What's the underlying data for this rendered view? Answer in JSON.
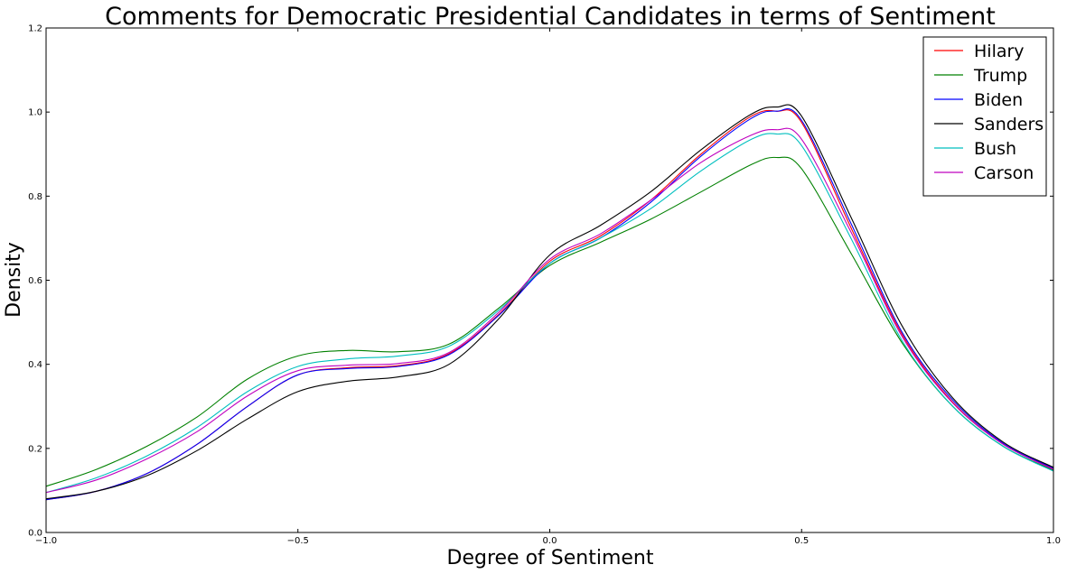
{
  "chart_data": {
    "type": "line",
    "title": "Comments for Democratic Presidential Candidates in terms of Sentiment",
    "xlabel": "Degree of Sentiment",
    "ylabel": "Density",
    "xlim": [
      -1.0,
      1.0
    ],
    "ylim": [
      0.0,
      1.2
    ],
    "xticks": [
      -1.0,
      -0.5,
      0.0,
      0.5,
      1.0
    ],
    "xtick_labels": [
      "−1.0",
      "−0.5",
      "0.0",
      "0.5",
      "1.0"
    ],
    "yticks": [
      0.0,
      0.2,
      0.4,
      0.6,
      0.8,
      1.0,
      1.2
    ],
    "ytick_labels": [
      "0.0",
      "0.2",
      "0.4",
      "0.6",
      "0.8",
      "1.0",
      "1.2"
    ],
    "grid": false,
    "legend_position": "top-right",
    "x": [
      -1.0,
      -0.9,
      -0.8,
      -0.7,
      -0.6,
      -0.5,
      -0.4,
      -0.3,
      -0.2,
      -0.1,
      0.0,
      0.1,
      0.2,
      0.3,
      0.4,
      0.45,
      0.5,
      0.6,
      0.7,
      0.8,
      0.9,
      1.0
    ],
    "series": [
      {
        "name": "Hilary",
        "color": "#ff0000",
        "values": [
          0.078,
          0.098,
          0.14,
          0.21,
          0.3,
          0.375,
          0.392,
          0.397,
          0.425,
          0.52,
          0.645,
          0.705,
          0.79,
          0.9,
          0.99,
          1.002,
          0.975,
          0.72,
          0.47,
          0.31,
          0.21,
          0.152
        ]
      },
      {
        "name": "Trump",
        "color": "#008000",
        "values": [
          0.11,
          0.15,
          0.205,
          0.275,
          0.365,
          0.42,
          0.433,
          0.43,
          0.448,
          0.535,
          0.635,
          0.69,
          0.745,
          0.81,
          0.875,
          0.892,
          0.865,
          0.66,
          0.45,
          0.3,
          0.205,
          0.148
        ]
      },
      {
        "name": "Biden",
        "color": "#0000ff",
        "values": [
          0.078,
          0.098,
          0.14,
          0.21,
          0.3,
          0.375,
          0.39,
          0.395,
          0.423,
          0.518,
          0.64,
          0.7,
          0.785,
          0.895,
          0.985,
          1.002,
          0.98,
          0.73,
          0.475,
          0.315,
          0.212,
          0.153
        ]
      },
      {
        "name": "Sanders",
        "color": "#000000",
        "values": [
          0.08,
          0.098,
          0.135,
          0.195,
          0.27,
          0.335,
          0.36,
          0.37,
          0.4,
          0.51,
          0.66,
          0.73,
          0.81,
          0.91,
          0.995,
          1.012,
          0.99,
          0.745,
          0.49,
          0.32,
          0.215,
          0.155
        ]
      },
      {
        "name": "Bush",
        "color": "#00bfbf",
        "values": [
          0.095,
          0.13,
          0.182,
          0.25,
          0.335,
          0.395,
          0.413,
          0.42,
          0.443,
          0.53,
          0.64,
          0.7,
          0.77,
          0.86,
          0.935,
          0.948,
          0.92,
          0.695,
          0.455,
          0.3,
          0.205,
          0.146
        ]
      },
      {
        "name": "Carson",
        "color": "#bf00bf",
        "values": [
          0.095,
          0.125,
          0.175,
          0.24,
          0.325,
          0.385,
          0.398,
          0.402,
          0.428,
          0.525,
          0.65,
          0.71,
          0.79,
          0.88,
          0.945,
          0.958,
          0.935,
          0.71,
          0.465,
          0.308,
          0.21,
          0.15
        ]
      }
    ]
  }
}
